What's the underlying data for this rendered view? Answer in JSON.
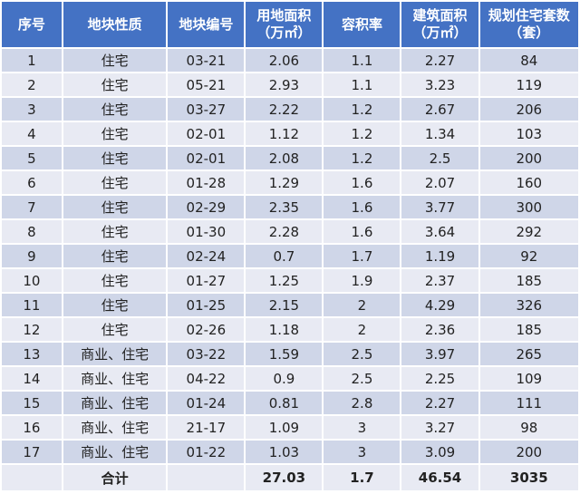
{
  "table": {
    "headers": [
      {
        "line1": "序号",
        "line2": ""
      },
      {
        "line1": "地块性质",
        "line2": ""
      },
      {
        "line1": "地块编号",
        "line2": ""
      },
      {
        "line1": "用地面积",
        "line2": "（万㎡）"
      },
      {
        "line1": "容积率",
        "line2": ""
      },
      {
        "line1": "建筑面积",
        "line2": "（万㎡）"
      },
      {
        "line1": "规划住宅套数",
        "line2": "（套）"
      }
    ],
    "rows": [
      [
        "1",
        "住宅",
        "03-21",
        "2.06",
        "1.1",
        "2.27",
        "84"
      ],
      [
        "2",
        "住宅",
        "05-21",
        "2.93",
        "1.1",
        "3.23",
        "119"
      ],
      [
        "3",
        "住宅",
        "03-27",
        "2.22",
        "1.2",
        "2.67",
        "206"
      ],
      [
        "4",
        "住宅",
        "02-01",
        "1.12",
        "1.2",
        "1.34",
        "103"
      ],
      [
        "5",
        "住宅",
        "02-01",
        "2.08",
        "1.2",
        "2.5",
        "200"
      ],
      [
        "6",
        "住宅",
        "01-28",
        "1.29",
        "1.6",
        "2.07",
        "160"
      ],
      [
        "7",
        "住宅",
        "02-29",
        "2.35",
        "1.6",
        "3.77",
        "300"
      ],
      [
        "8",
        "住宅",
        "01-30",
        "2.28",
        "1.6",
        "3.64",
        "292"
      ],
      [
        "9",
        "住宅",
        "02-24",
        "0.7",
        "1.7",
        "1.19",
        "92"
      ],
      [
        "10",
        "住宅",
        "01-27",
        "1.25",
        "1.9",
        "2.37",
        "185"
      ],
      [
        "11",
        "住宅",
        "01-25",
        "2.15",
        "2",
        "4.29",
        "326"
      ],
      [
        "12",
        "住宅",
        "02-26",
        "1.18",
        "2",
        "2.36",
        "185"
      ],
      [
        "13",
        "商业、住宅",
        "03-22",
        "1.59",
        "2.5",
        "3.97",
        "265"
      ],
      [
        "14",
        "商业、住宅",
        "04-22",
        "0.9",
        "2.5",
        "2.25",
        "109"
      ],
      [
        "15",
        "商业、住宅",
        "01-24",
        "0.81",
        "2.8",
        "2.27",
        "111"
      ],
      [
        "16",
        "商业、住宅",
        "21-17",
        "1.09",
        "3",
        "3.27",
        "98"
      ],
      [
        "17",
        "商业、住宅",
        "01-22",
        "1.03",
        "3",
        "3.09",
        "200"
      ]
    ],
    "total": [
      "",
      "合计",
      "",
      "27.03",
      "1.7",
      "46.54",
      "3035"
    ]
  },
  "colors": {
    "header_bg": "#4472c4",
    "row_odd_bg": "#cfd6e8",
    "row_even_bg": "#e8eaf3"
  }
}
